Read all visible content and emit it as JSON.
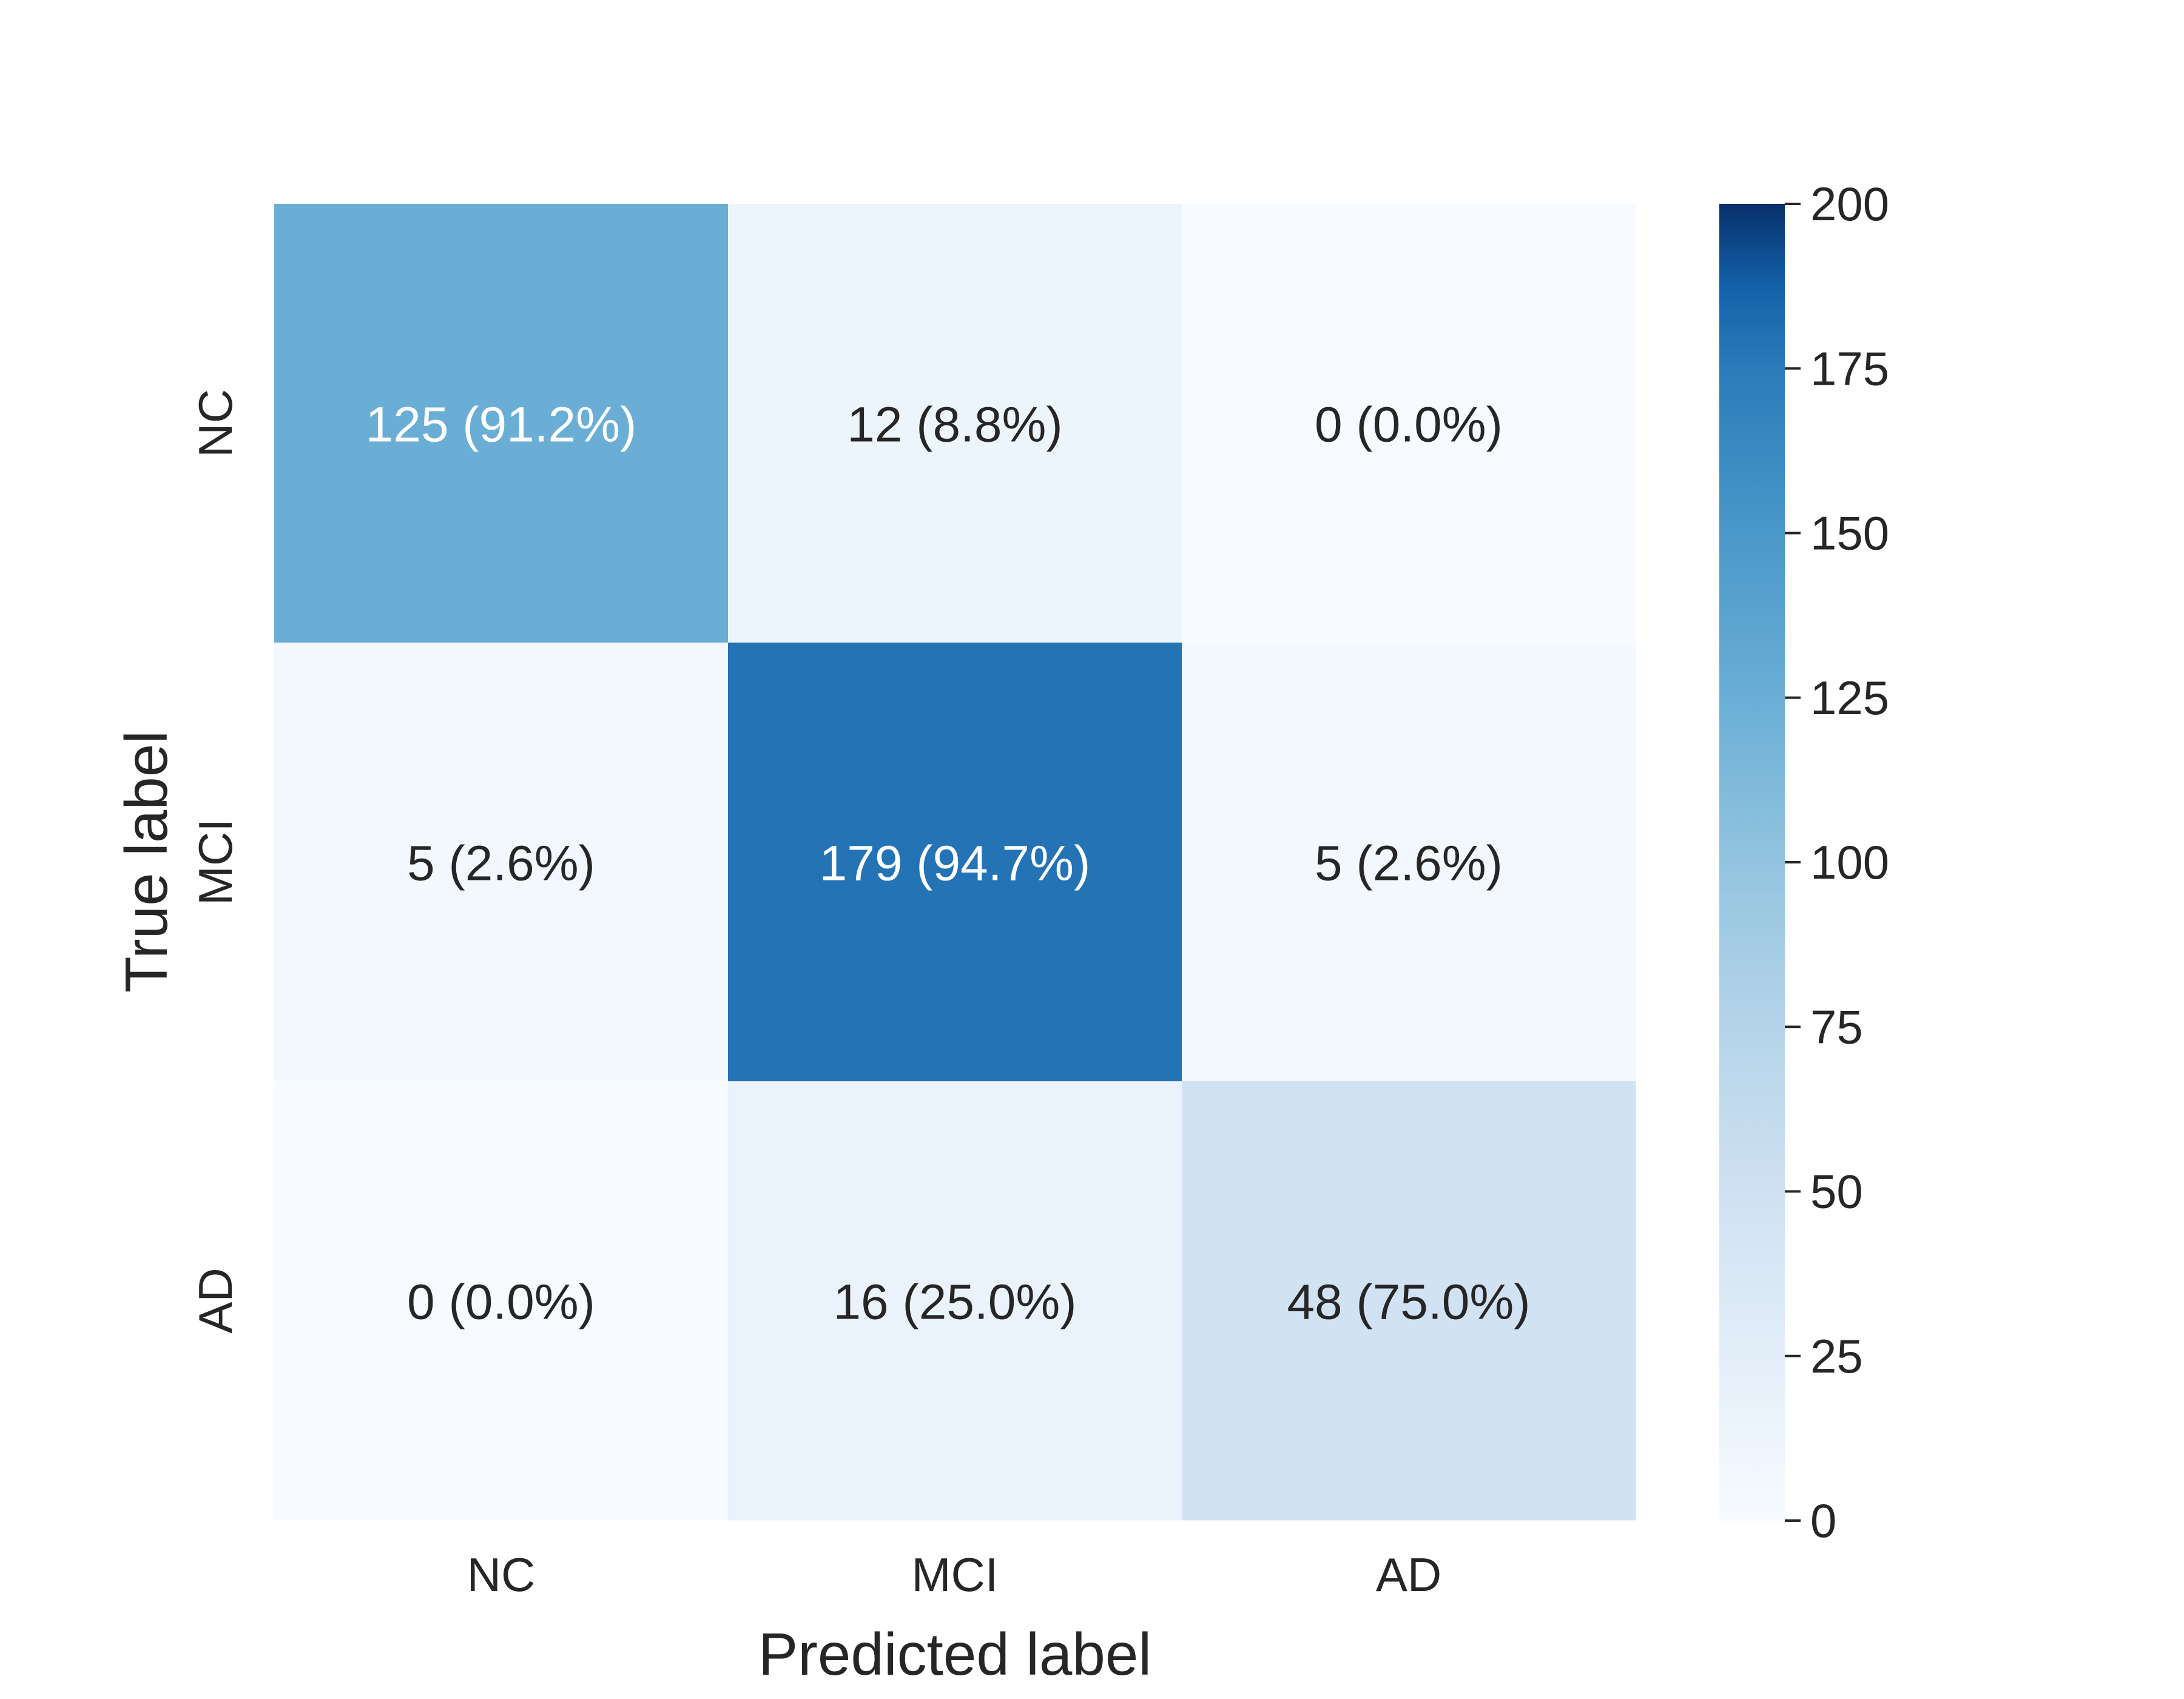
{
  "chart_data": {
    "type": "heatmap",
    "row_labels": [
      "NC",
      "MCI",
      "AD"
    ],
    "col_labels": [
      "NC",
      "MCI",
      "AD"
    ],
    "values": [
      [
        125,
        12,
        0
      ],
      [
        5,
        179,
        5
      ],
      [
        0,
        16,
        48
      ]
    ],
    "cell_labels": [
      [
        "125 (91.2%)",
        "12 (8.8%)",
        "0 (0.0%)"
      ],
      [
        "5 (2.6%)",
        "179 (94.7%)",
        "5 (2.6%)"
      ],
      [
        "0 (0.0%)",
        "16 (25.0%)",
        "48 (75.0%)"
      ]
    ],
    "xlabel": "Predicted label",
    "ylabel": "True label",
    "colorbar": {
      "min": 0,
      "max": 200,
      "ticks": [
        0,
        25,
        50,
        75,
        100,
        125,
        150,
        175,
        200
      ],
      "colormap": "Blues"
    }
  }
}
